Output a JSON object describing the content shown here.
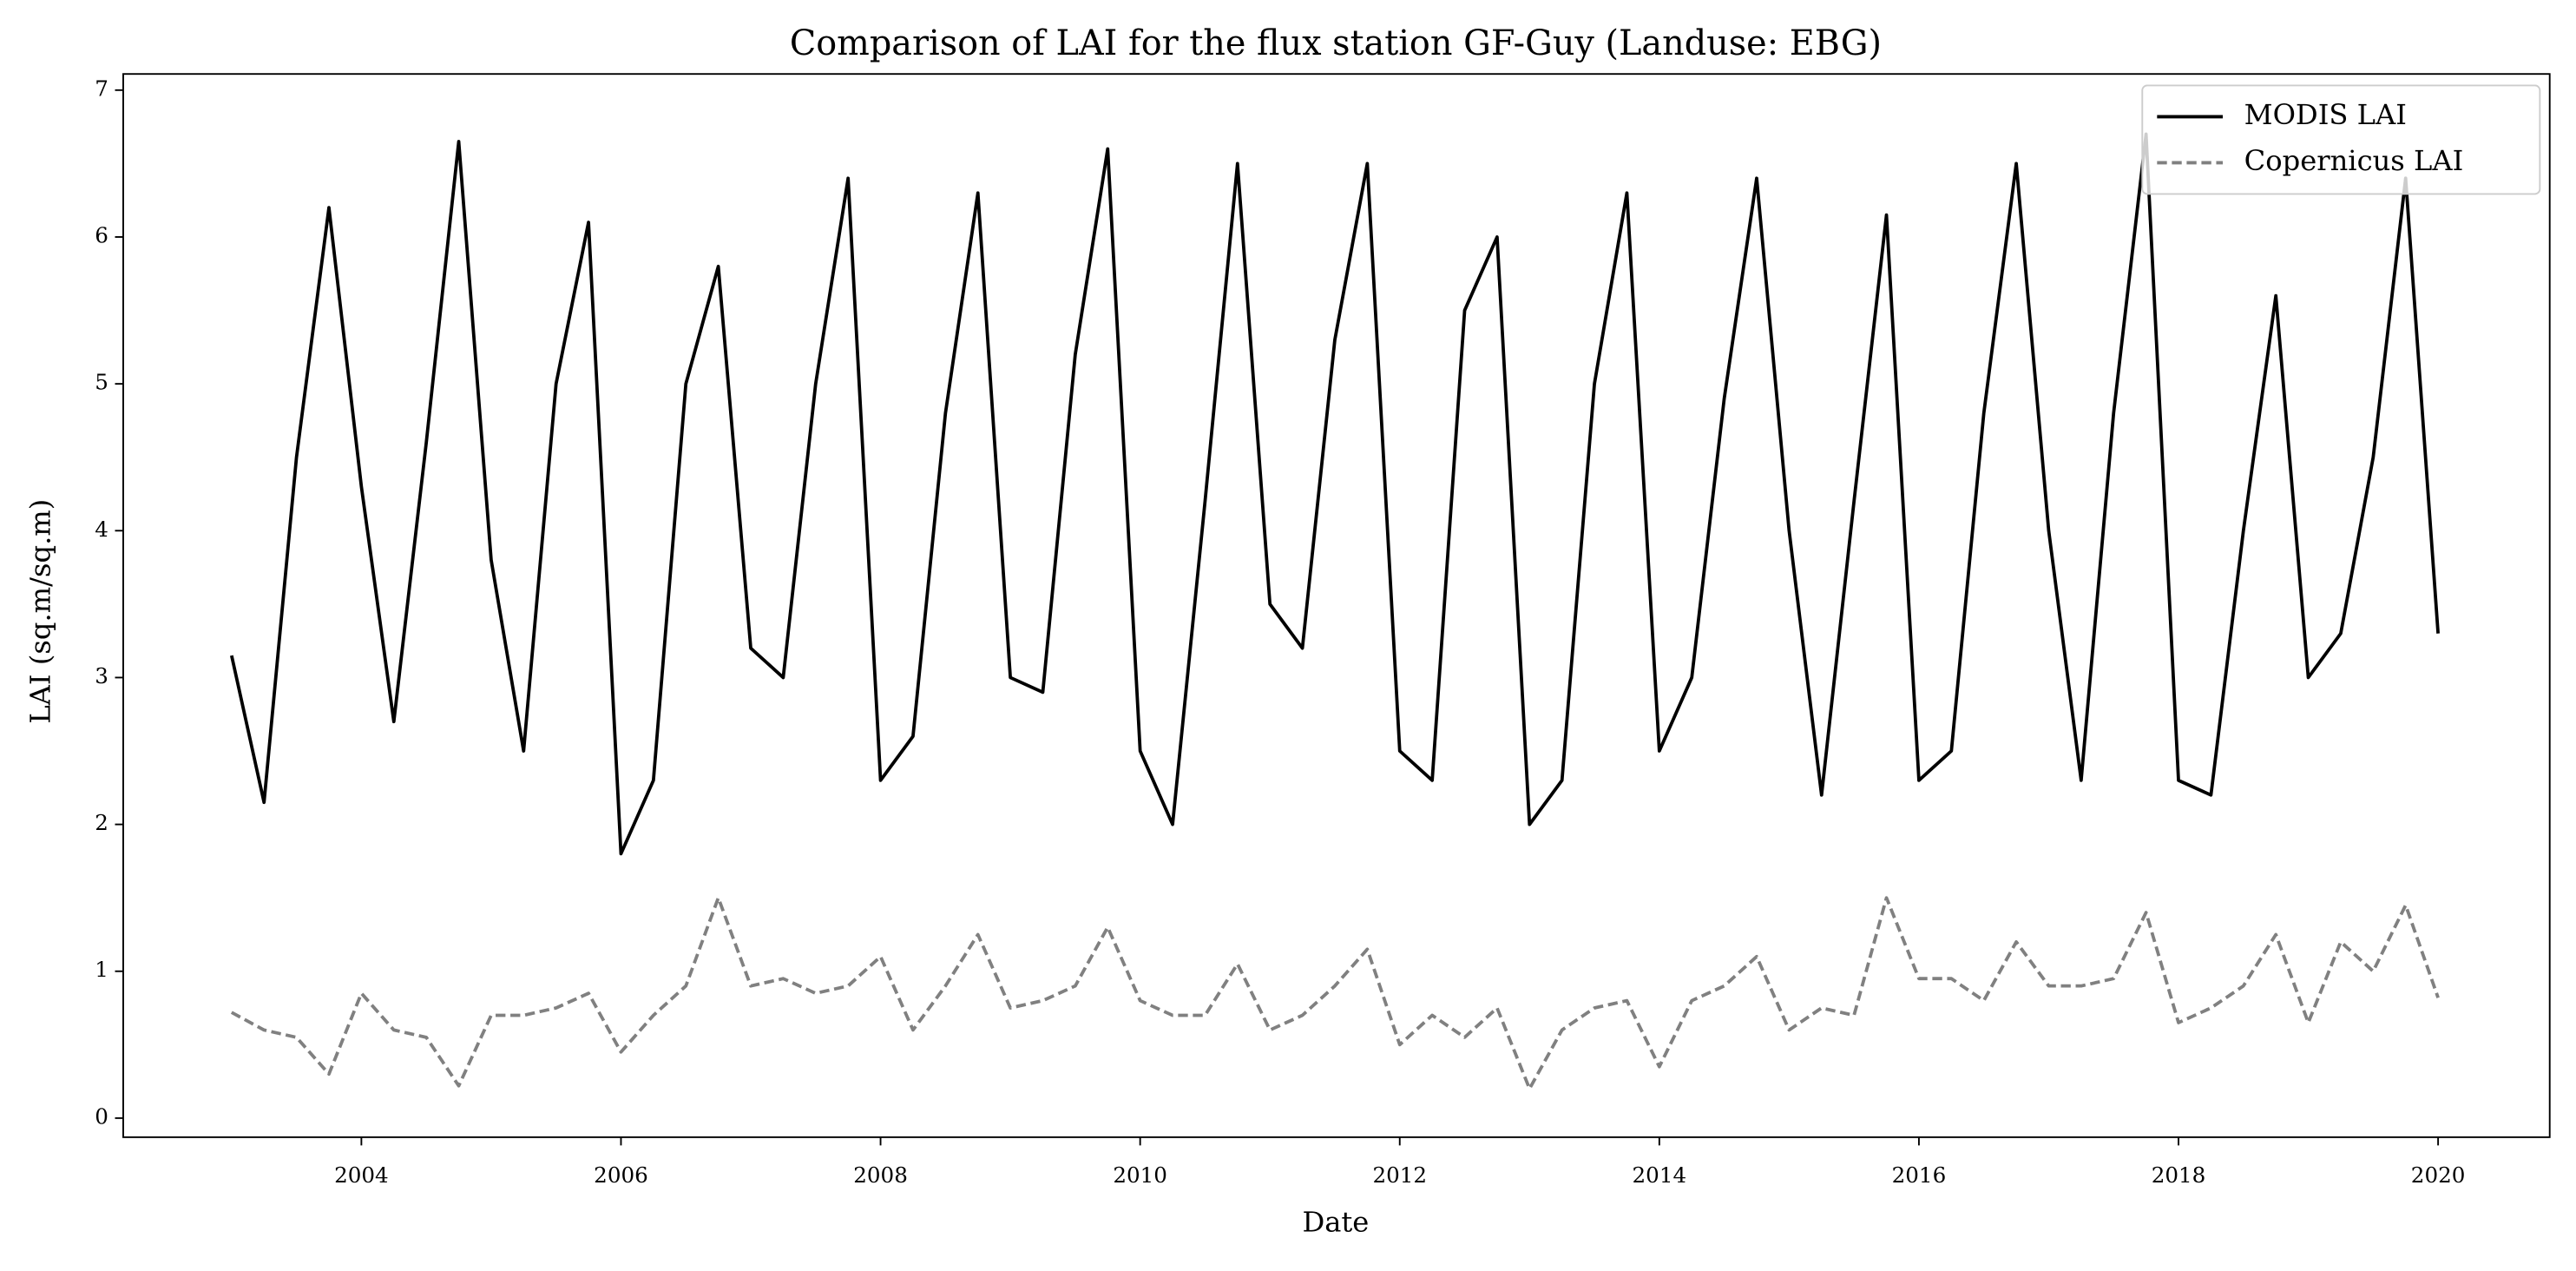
{
  "chart_data": {
    "type": "line",
    "title": "Comparison of LAI for the flux station GF-Guy (Landuse: EBG)",
    "x_label": "Date",
    "y_label": "LAI (sq.m/sq.m)",
    "x": [
      2003,
      2003.25,
      2003.5,
      2003.75,
      2004,
      2004.25,
      2004.5,
      2004.75,
      2005,
      2005.25,
      2005.5,
      2005.75,
      2006,
      2006.25,
      2006.5,
      2006.75,
      2007,
      2007.25,
      2007.5,
      2007.75,
      2008,
      2008.25,
      2008.5,
      2008.75,
      2009,
      2009.25,
      2009.5,
      2009.75,
      2010,
      2010.25,
      2010.5,
      2010.75,
      2011,
      2011.25,
      2011.5,
      2011.75,
      2012,
      2012.25,
      2012.5,
      2012.75,
      2013,
      2013.25,
      2013.5,
      2013.75,
      2014,
      2014.25,
      2014.5,
      2014.75,
      2015,
      2015.25,
      2015.5,
      2015.75,
      2016,
      2016.25,
      2016.5,
      2016.75,
      2017,
      2017.25,
      2017.5,
      2017.75,
      2018,
      2018.25,
      2018.5,
      2018.75,
      2019,
      2019.25,
      2019.5,
      2019.75,
      2020
    ],
    "series": [
      {
        "name": "MODIS LAI",
        "color": "#000000",
        "dash": false,
        "values": [
          3.15,
          2.15,
          4.5,
          6.2,
          4.3,
          2.7,
          4.6,
          6.65,
          3.8,
          2.5,
          5.0,
          6.1,
          1.8,
          2.3,
          5.0,
          5.8,
          3.2,
          3.0,
          5.0,
          6.4,
          2.3,
          2.6,
          4.8,
          6.3,
          3.0,
          2.9,
          5.2,
          6.6,
          2.5,
          2.0,
          4.2,
          6.5,
          3.5,
          3.2,
          5.3,
          6.5,
          2.5,
          2.3,
          5.5,
          6.0,
          2.0,
          2.3,
          5.0,
          6.3,
          2.5,
          3.0,
          4.9,
          6.4,
          4.0,
          2.2,
          4.2,
          6.15,
          2.3,
          2.5,
          4.8,
          6.5,
          4.0,
          2.3,
          4.8,
          6.7,
          2.3,
          2.2,
          4.0,
          5.6,
          3.0,
          3.3,
          4.5,
          6.4,
          3.3
        ]
      },
      {
        "name": "Copernicus LAI",
        "color": "#808080",
        "dash": true,
        "values": [
          0.72,
          0.6,
          0.55,
          0.3,
          0.85,
          0.6,
          0.55,
          0.22,
          0.7,
          0.7,
          0.75,
          0.85,
          0.45,
          0.7,
          0.9,
          1.5,
          0.9,
          0.95,
          0.85,
          0.9,
          1.1,
          0.6,
          0.9,
          1.25,
          0.75,
          0.8,
          0.9,
          1.3,
          0.8,
          0.7,
          0.7,
          1.05,
          0.6,
          0.7,
          0.9,
          1.15,
          0.5,
          0.7,
          0.55,
          0.75,
          0.2,
          0.6,
          0.75,
          0.8,
          0.35,
          0.8,
          0.9,
          1.1,
          0.6,
          0.75,
          0.7,
          1.5,
          0.95,
          0.95,
          0.8,
          1.2,
          0.9,
          0.9,
          0.95,
          1.4,
          0.65,
          0.75,
          0.9,
          1.25,
          0.65,
          1.2,
          1.0,
          1.45,
          0.82
        ]
      }
    ],
    "xlim": [
      2002.165,
      2020.86
    ],
    "xticks": [
      2004,
      2006,
      2008,
      2010,
      2012,
      2014,
      2016,
      2018,
      2020
    ],
    "ylim": [
      -0.13,
      7.11
    ],
    "yticks": [
      0,
      1,
      2,
      3,
      4,
      5,
      6,
      7
    ],
    "legend": "upper right"
  }
}
